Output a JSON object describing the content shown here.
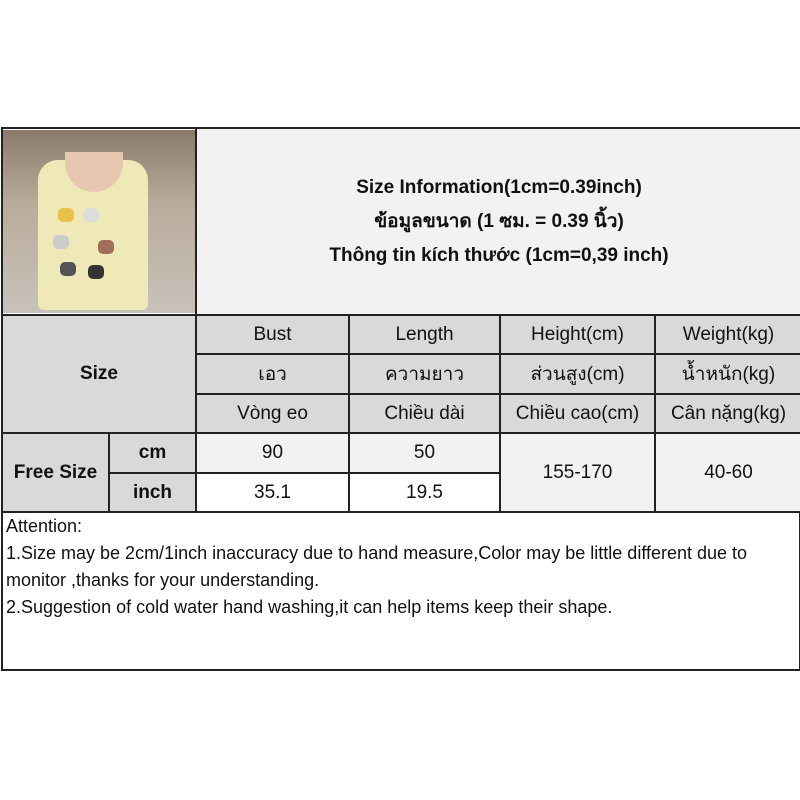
{
  "title": {
    "line1": "Size Information(1cm=0.39inch)",
    "line2": "ข้อมูลขนาด (1 ซม. = 0.39 นิ้ว)",
    "line3": "Thông tin kích thước (1cm=0,39 inch)"
  },
  "header": {
    "size_label": "Size",
    "columns": [
      {
        "en": "Bust",
        "th": "เอว",
        "vi": "Vòng eo"
      },
      {
        "en": "Length",
        "th": "ความยาว",
        "vi": "Chiều dài"
      },
      {
        "en": "Height(cm)",
        "th": "ส่วนสูง(cm)",
        "vi": "Chiều cao(cm)"
      },
      {
        "en": "Weight(kg)",
        "th": "น้ำหนัก(kg)",
        "vi": "Cân nặng(kg)"
      }
    ]
  },
  "rows": {
    "size_name": "Free Size",
    "cm": {
      "unit": "cm",
      "bust": "90",
      "length": "50"
    },
    "inch": {
      "unit": "inch",
      "bust": "35.1",
      "length": "19.5"
    },
    "height": "155-170",
    "weight": "40-60"
  },
  "attention": {
    "heading": "Attention:",
    "note1": "1.Size may be 2cm/1inch inaccuracy due to hand measure,Color may be little different due to monitor ,thanks for your understanding.",
    "note2": "2.Suggestion of cold water hand washing,it can help items keep their shape."
  }
}
